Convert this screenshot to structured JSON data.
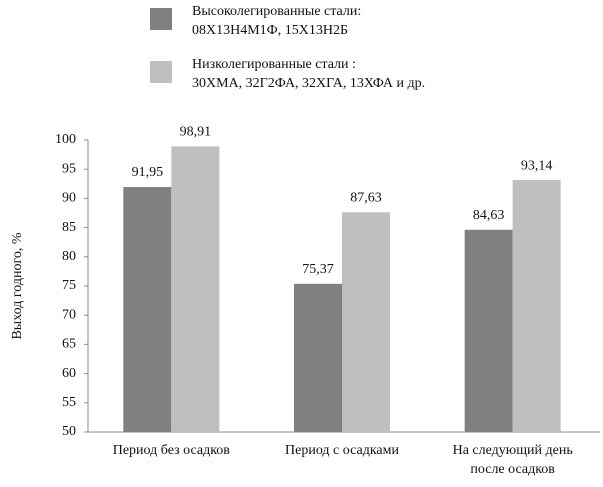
{
  "chart_data": {
    "type": "bar",
    "y_label": "Выход годного, %",
    "categories": [
      "Период без осадков",
      "Период с осадками",
      "На следующий день\nпосле осадков"
    ],
    "series": [
      {
        "name": "Высоколегированные стали:\n08Х13Н4М1Ф, 15Х13Н2Б",
        "color": "#808080",
        "values": [
          91.95,
          75.37,
          84.63
        ],
        "value_labels": [
          "91,95",
          "75,37",
          "84,63"
        ]
      },
      {
        "name": "Низколегированные стали :\n30ХМА, 32Г2ФА, 32ХГА, 13ХФА и др.",
        "color": "#bfbfbf",
        "values": [
          98.91,
          87.63,
          93.14
        ],
        "value_labels": [
          "98,91",
          "87,63",
          "93,14"
        ]
      }
    ],
    "ylim": [
      50,
      100
    ],
    "yticks": [
      50,
      55,
      60,
      65,
      70,
      75,
      80,
      85,
      90,
      95,
      100
    ]
  }
}
